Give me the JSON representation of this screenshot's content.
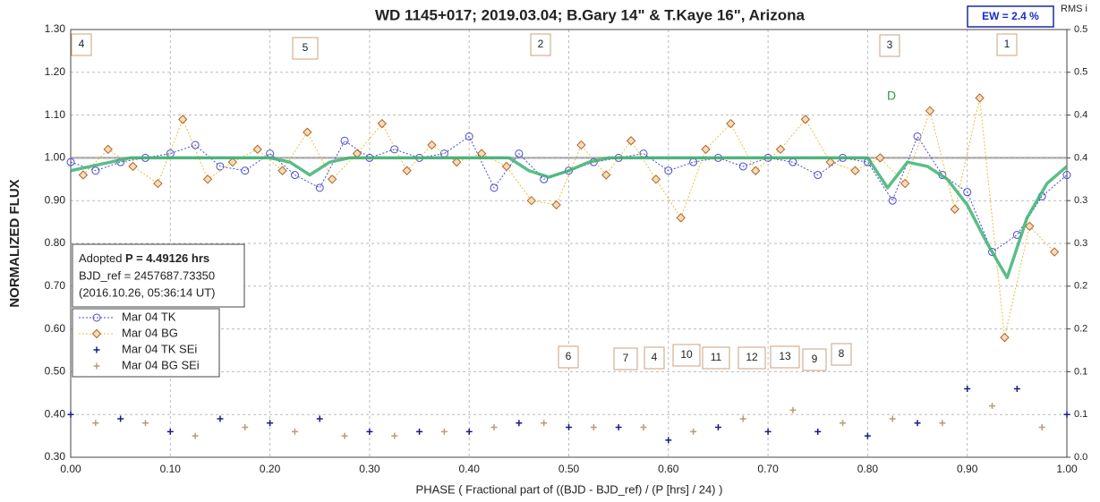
{
  "chart_data": {
    "type": "scatter",
    "title": "WD 1145+017; 2019.03.04; B.Gary 14\" & T.Kaye 16\", Arizona",
    "x_label": "PHASE ( Fractional part of ((BJD - BJD_ref) / (P [hrs] / 24) )",
    "y_label": "NORMALIZED FLUX",
    "y2_label": "RMS i",
    "ew_label": "EW =  2.4 %",
    "info": {
      "adopted": "Adopted ",
      "period": "P = 4.49126 hrs",
      "bjd_ref": "BJD_ref = 2457687.73350",
      "date": "(2016.10.26, 05:36:14 UT)"
    },
    "annotations": [
      "4",
      "5",
      "2",
      "3",
      "1",
      "D",
      "6",
      "7",
      "4",
      "10",
      "11",
      "12",
      "13",
      "9",
      "8"
    ],
    "xlim": [
      0,
      1
    ],
    "xticks": [
      {
        "value": 0,
        "label": "0.00"
      },
      {
        "value": 0.1,
        "label": "0.10"
      },
      {
        "value": 0.2,
        "label": "0.20"
      },
      {
        "value": 0.3,
        "label": "0.30"
      },
      {
        "value": 0.4,
        "label": "0.40"
      },
      {
        "value": 0.5,
        "label": "0.50"
      },
      {
        "value": 0.6,
        "label": "0.60"
      },
      {
        "value": 0.7,
        "label": "0.70"
      },
      {
        "value": 0.8,
        "label": "0.80"
      },
      {
        "value": 0.9,
        "label": "0.90"
      },
      {
        "value": 1,
        "label": "1.00"
      }
    ],
    "ylim": [
      0.3,
      1.3
    ],
    "yticks": [
      {
        "value": 0.3,
        "label": "0.30"
      },
      {
        "value": 0.4,
        "label": "0.40"
      },
      {
        "value": 0.5,
        "label": "0.50"
      },
      {
        "value": 0.6,
        "label": "0.60"
      },
      {
        "value": 0.7,
        "label": "0.70"
      },
      {
        "value": 0.8,
        "label": "0.80"
      },
      {
        "value": 0.9,
        "label": "0.90"
      },
      {
        "value": 1.0,
        "label": "1.00"
      },
      {
        "value": 1.1,
        "label": "1.10"
      },
      {
        "value": 1.2,
        "label": "1.20"
      },
      {
        "value": 1.3,
        "label": "1.30"
      }
    ],
    "y2lim": [
      0,
      0.5
    ],
    "y2ticks": [
      {
        "value": 0,
        "label": "0.0"
      },
      {
        "value": 0.05,
        "label": "0.1"
      },
      0.1,
      {
        "value": 0.15,
        "label": "0.2"
      },
      0.2,
      {
        "value": 0.25,
        "label": "0.3"
      },
      0.3,
      {
        "value": 0.35,
        "label": "0.4"
      },
      0.4,
      {
        "value": 0.45,
        "label": "0.5"
      },
      0.5
    ],
    "grid": true,
    "legend": "lower-left",
    "series": [
      {
        "name": "Mar 04 TK",
        "color": "#4a4ad0",
        "marker": "circle",
        "line": true,
        "x": [
          0,
          0.025,
          0.05,
          0.075,
          0.1,
          0.125,
          0.15,
          0.175,
          0.2,
          0.225,
          0.25,
          0.275,
          0.3,
          0.325,
          0.35,
          0.375,
          0.4,
          0.425,
          0.45,
          0.475,
          0.5,
          0.525,
          0.55,
          0.575,
          0.6,
          0.625,
          0.65,
          0.675,
          0.7,
          0.725,
          0.75,
          0.775,
          0.8,
          0.825,
          0.85,
          0.875,
          0.9,
          0.925,
          0.95,
          0.975,
          1
        ],
        "values": [
          0.99,
          0.97,
          0.99,
          1.0,
          1.01,
          1.03,
          0.98,
          0.97,
          1.01,
          0.96,
          0.93,
          1.04,
          1.0,
          1.02,
          1.0,
          1.01,
          1.05,
          0.93,
          1.01,
          0.95,
          0.97,
          0.99,
          1.0,
          1.01,
          0.97,
          0.99,
          1.0,
          0.98,
          1.0,
          0.99,
          0.96,
          1.0,
          0.99,
          0.9,
          1.05,
          0.96,
          0.92,
          0.78,
          0.82,
          0.91,
          0.96
        ]
      },
      {
        "name": "Mar 04 BG",
        "color": "#b5651d",
        "marker": "diamond",
        "line": true,
        "x": [
          0.0125,
          0.0375,
          0.0625,
          0.0875,
          0.1125,
          0.1375,
          0.1625,
          0.1875,
          0.2125,
          0.2375,
          0.2625,
          0.2875,
          0.3125,
          0.3375,
          0.3625,
          0.3875,
          0.4125,
          0.4375,
          0.4625,
          0.4875,
          0.5125,
          0.5375,
          0.5625,
          0.5875,
          0.6125,
          0.6375,
          0.6625,
          0.6875,
          0.7125,
          0.7375,
          0.7625,
          0.7875,
          0.8125,
          0.8375,
          0.8625,
          0.8875,
          0.9125,
          0.9375,
          0.9625,
          0.9875
        ],
        "values": [
          0.96,
          1.02,
          0.98,
          0.94,
          1.09,
          0.95,
          0.99,
          1.02,
          0.97,
          1.06,
          0.95,
          1.01,
          1.08,
          0.97,
          1.03,
          0.99,
          1.01,
          0.98,
          0.9,
          0.89,
          1.03,
          0.96,
          1.04,
          0.95,
          0.86,
          1.02,
          1.08,
          0.97,
          1.02,
          1.09,
          0.99,
          0.97,
          1.0,
          0.94,
          1.11,
          0.88,
          1.14,
          0.58,
          0.84,
          0.78
        ]
      },
      {
        "name": "Mar 04 TK SEi",
        "color": "#1a1a8c",
        "marker": "plus",
        "axis": "y2",
        "x": [
          0,
          0.05,
          0.1,
          0.15,
          0.2,
          0.25,
          0.3,
          0.35,
          0.4,
          0.45,
          0.5,
          0.55,
          0.6,
          0.65,
          0.7,
          0.75,
          0.8,
          0.85,
          0.9,
          0.95,
          1
        ],
        "values": [
          0.05,
          0.045,
          0.03,
          0.045,
          0.04,
          0.045,
          0.03,
          0.03,
          0.03,
          0.04,
          0.035,
          0.035,
          0.02,
          0.035,
          0.03,
          0.03,
          0.025,
          0.04,
          0.08,
          0.08,
          0.05
        ]
      },
      {
        "name": "Mar 04 BG SEi",
        "color": "#b89c78",
        "marker": "plus",
        "axis": "y2",
        "x": [
          0.025,
          0.075,
          0.125,
          0.175,
          0.225,
          0.275,
          0.325,
          0.375,
          0.425,
          0.475,
          0.525,
          0.575,
          0.625,
          0.675,
          0.725,
          0.775,
          0.825,
          0.875,
          0.925,
          0.975
        ],
        "values": [
          0.04,
          0.04,
          0.025,
          0.035,
          0.03,
          0.025,
          0.025,
          0.03,
          0.035,
          0.04,
          0.035,
          0.035,
          0.03,
          0.045,
          0.055,
          0.04,
          0.045,
          0.04,
          0.06,
          0.035
        ]
      }
    ],
    "model": {
      "color": "#3cb371",
      "x": [
        0,
        0.02,
        0.04,
        0.06,
        0.08,
        0.1,
        0.12,
        0.14,
        0.16,
        0.18,
        0.2,
        0.22,
        0.24,
        0.26,
        0.28,
        0.3,
        0.32,
        0.34,
        0.36,
        0.38,
        0.4,
        0.42,
        0.44,
        0.46,
        0.48,
        0.5,
        0.52,
        0.54,
        0.56,
        0.58,
        0.6,
        0.62,
        0.64,
        0.66,
        0.68,
        0.7,
        0.72,
        0.74,
        0.76,
        0.78,
        0.8,
        0.82,
        0.84,
        0.86,
        0.88,
        0.9,
        0.92,
        0.94,
        0.96,
        0.98,
        1
      ],
      "values": [
        0.97,
        0.98,
        0.99,
        1.0,
        1.0,
        1.0,
        1.0,
        1.0,
        1.0,
        1.0,
        1.0,
        0.99,
        0.96,
        0.99,
        1.0,
        1.0,
        1.0,
        1.0,
        1.0,
        1.0,
        1.0,
        1.0,
        1.0,
        0.97,
        0.955,
        0.97,
        0.99,
        1.0,
        1.0,
        1.0,
        1.0,
        1.0,
        1.0,
        1.0,
        1.0,
        1.0,
        1.0,
        1.0,
        1.0,
        1.0,
        1.0,
        0.93,
        0.99,
        0.98,
        0.95,
        0.89,
        0.8,
        0.72,
        0.86,
        0.94,
        0.98
      ]
    }
  }
}
